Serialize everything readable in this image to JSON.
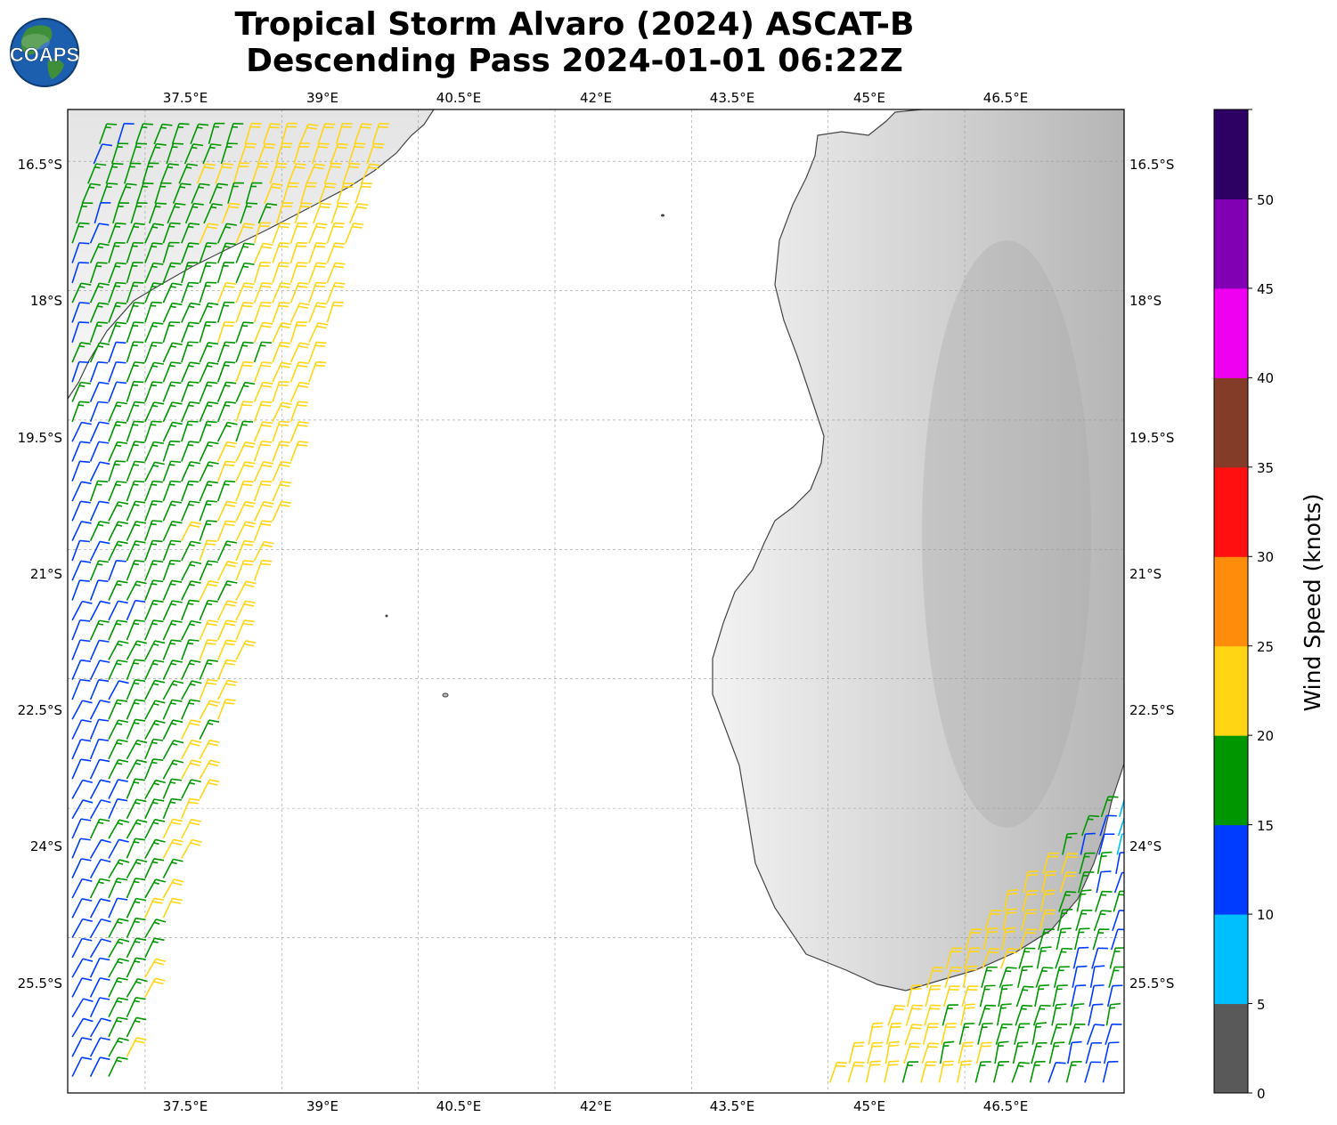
{
  "title": {
    "line1": "Tropical Storm Alvaro (2024) ASCAT-B",
    "line2": "Descending Pass 2024-01-01 06:22Z"
  },
  "logo": {
    "text": "COAPS",
    "icon": "globe-logo-icon",
    "color": "#1b5fae"
  },
  "map": {
    "lon_range": [
      36.65,
      48.25
    ],
    "lat_range": [
      -27.3,
      -15.9
    ],
    "lon_ticks": [
      "37.5°E",
      "39°E",
      "40.5°E",
      "42°E",
      "43.5°E",
      "45°E",
      "46.5°E"
    ],
    "lat_ticks": [
      "16.5°S",
      "18°S",
      "19.5°S",
      "21°S",
      "22.5°S",
      "24°S",
      "25.5°S"
    ],
    "gridlines": true,
    "land_shading": "grayscale-topography",
    "coastline_color": "#444444"
  },
  "colorbar": {
    "label": "Wind Speed (knots)",
    "ticks": [
      "0",
      "5",
      "10",
      "15",
      "20",
      "25",
      "30",
      "35",
      "40",
      "45",
      "50"
    ],
    "colors": [
      "#595959",
      "#00bfff",
      "#003cff",
      "#009600",
      "#ffd514",
      "#ff8c0a",
      "#ff0f0f",
      "#823c28",
      "#f000f0",
      "#8200b4",
      "#2d0064"
    ],
    "placement": "right"
  },
  "wind_barbs": {
    "units": "knots",
    "western_swath": {
      "lon_range": [
        36.7,
        40.0
      ],
      "lat_range": [
        -27.2,
        -16.3
      ],
      "typical_speed": [
        10,
        22
      ]
    },
    "southeastern_swath": {
      "lon_range": [
        45.0,
        48.2
      ],
      "lat_range": [
        -27.2,
        -24.1
      ],
      "typical_speed": [
        5,
        22
      ]
    }
  }
}
